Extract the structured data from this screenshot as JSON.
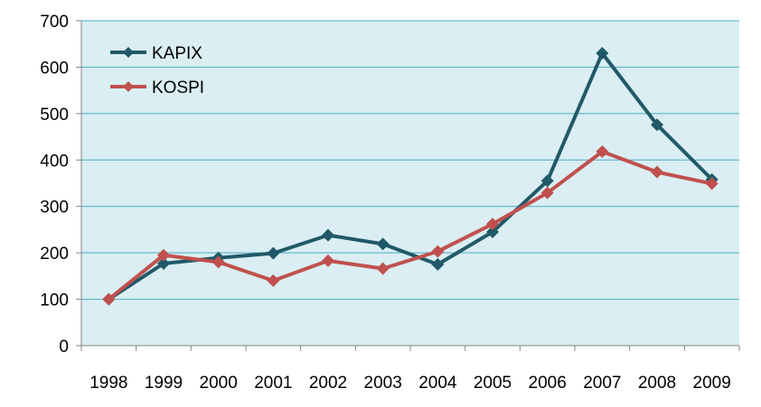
{
  "chart_data": {
    "type": "line",
    "title": "",
    "xlabel": "",
    "ylabel": "",
    "categories": [
      "1998",
      "1999",
      "2000",
      "2001",
      "2002",
      "2003",
      "2004",
      "2005",
      "2006",
      "2007",
      "2008",
      "2009"
    ],
    "ylim": [
      0,
      700
    ],
    "yticks": [
      0,
      100,
      200,
      300,
      400,
      500,
      600,
      700
    ],
    "grid": true,
    "legend_position": "top-left",
    "plot_background": "#DAEEF3",
    "series": [
      {
        "name": "KAPIX",
        "color": "#215968",
        "marker": "diamond",
        "values": [
          100,
          177,
          189,
          199,
          238,
          219,
          175,
          245,
          355,
          630,
          476,
          358
        ]
      },
      {
        "name": "KOSPI",
        "color": "#C0504D",
        "marker": "diamond",
        "values": [
          100,
          195,
          180,
          140,
          183,
          166,
          203,
          262,
          329,
          418,
          374,
          349
        ]
      }
    ]
  }
}
